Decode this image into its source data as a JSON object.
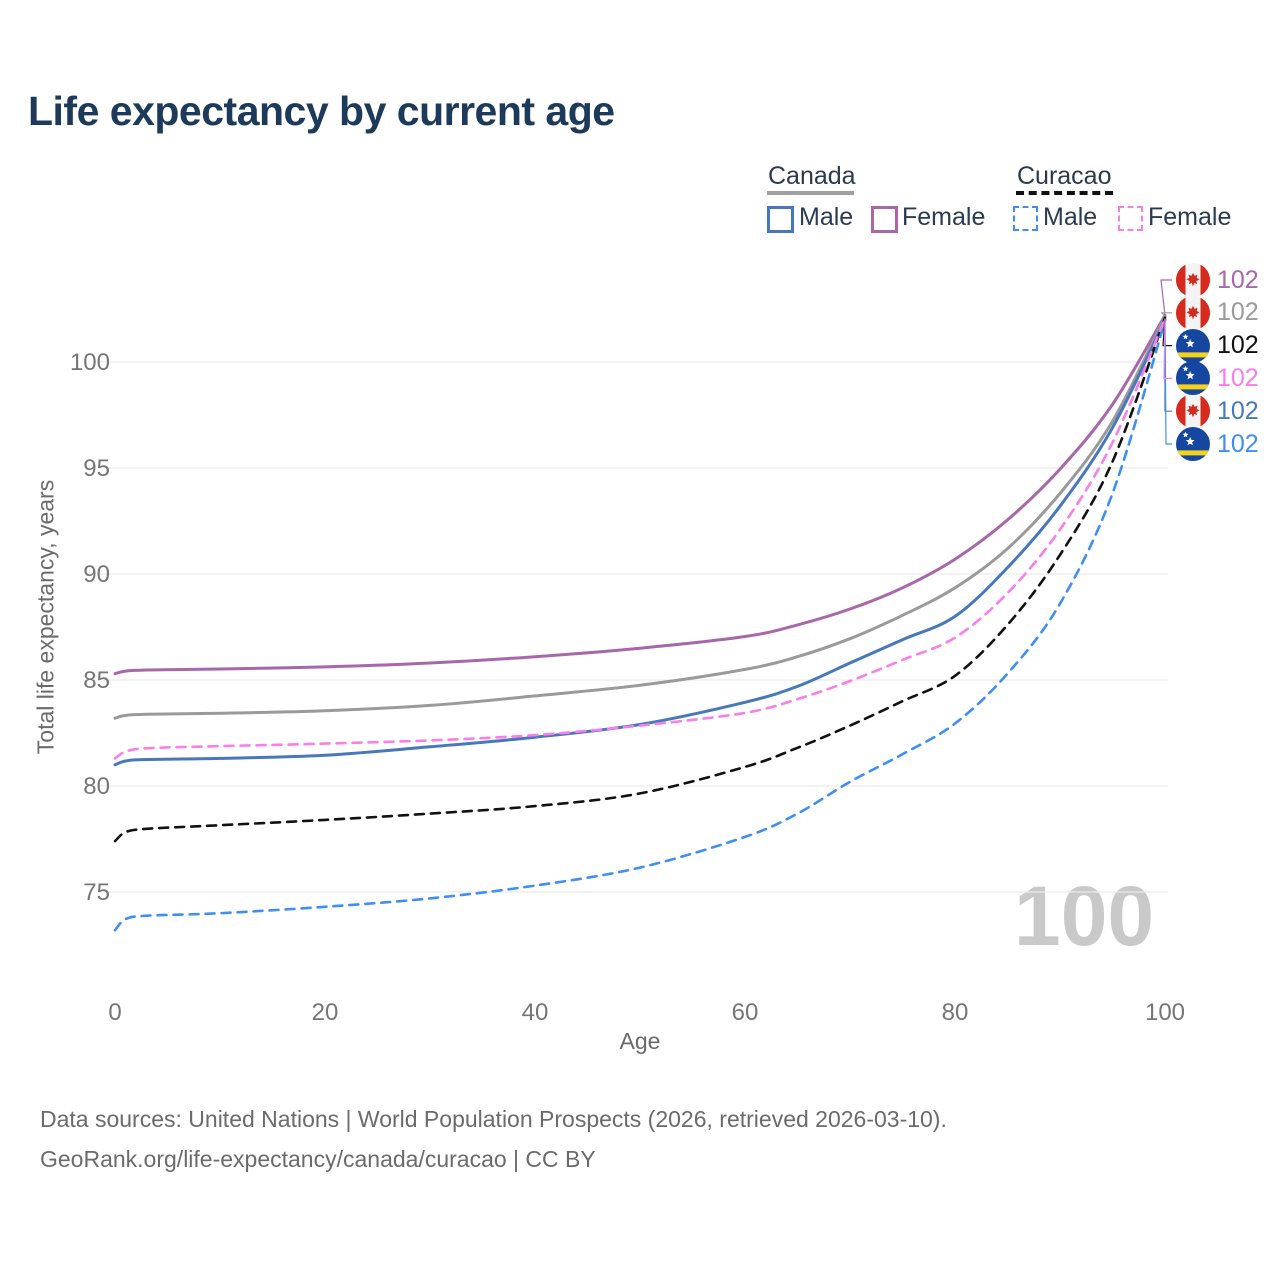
{
  "page": {
    "title": "Life expectancy by current age",
    "footer_line1": "Data sources: United Nations | World Population Prospects (2026, retrieved 2026-03-10).",
    "footer_line2": "GeoRank.org/life-expectancy/canada/curacao | CC BY",
    "watermark_age": "100"
  },
  "colors": {
    "canada_male": "#4678bb",
    "canada_female": "#a866ab",
    "canada_all": "#9a9a9a",
    "curacao_male": "#3f8ef5",
    "curacao_female": "#f97ee7",
    "curacao_all": "#111111",
    "grid": "#ebebeb",
    "tick_text": "#767676",
    "watermark": "#c9c9c9"
  },
  "legend": {
    "groups": [
      {
        "title": "Canada",
        "line_style": "solid",
        "underline_color": "#a0a0a0",
        "items": [
          {
            "label": "Male",
            "color": "#4678bb"
          },
          {
            "label": "Female",
            "color": "#a866ab"
          }
        ]
      },
      {
        "title": "Curacao",
        "line_style": "dashed",
        "underline_color": "#111111",
        "items": [
          {
            "label": "Male",
            "color": "#3f8ef5"
          },
          {
            "label": "Female",
            "color": "#f97ee7"
          }
        ]
      }
    ]
  },
  "chart_data": {
    "type": "line",
    "title": "Life expectancy by current age",
    "xlabel": "Age",
    "ylabel": "Total life expectancy, years",
    "x_ticks": [
      0,
      20,
      40,
      60,
      80,
      100
    ],
    "y_ticks": [
      75,
      80,
      85,
      90,
      95,
      100
    ],
    "xlim": [
      0,
      100
    ],
    "ylim": [
      73,
      103
    ],
    "grid": "horizontal-only",
    "legend_position": "top-right",
    "hover_age": "100",
    "ages": [
      0,
      1,
      3,
      10,
      20,
      30,
      40,
      50,
      60,
      65,
      70,
      75,
      80,
      85,
      90,
      95,
      100
    ],
    "series": [
      {
        "name": "Canada Female",
        "country": "Canada",
        "sex": "Female",
        "style": "solid",
        "color": "#a866ab",
        "width": 3,
        "end_label": "102",
        "label_row": 0,
        "values": [
          85.3,
          85.42,
          85.47,
          85.52,
          85.62,
          85.8,
          86.1,
          86.5,
          87.05,
          87.6,
          88.35,
          89.35,
          90.7,
          92.55,
          94.95,
          98.0,
          102.2
        ]
      },
      {
        "name": "Canada Both sexes",
        "country": "Canada",
        "sex": "Both",
        "style": "solid",
        "color": "#9a9a9a",
        "width": 3,
        "end_label": "102",
        "label_row": 1,
        "values": [
          83.2,
          83.33,
          83.38,
          83.43,
          83.55,
          83.8,
          84.25,
          84.75,
          85.5,
          86.1,
          86.95,
          88.05,
          89.35,
          91.2,
          93.8,
          97.2,
          102.15
        ]
      },
      {
        "name": "Canada Male",
        "country": "Canada",
        "sex": "Male",
        "style": "solid",
        "color": "#4678bb",
        "width": 3,
        "end_label": "102",
        "label_row": 4,
        "values": [
          81.0,
          81.18,
          81.25,
          81.3,
          81.45,
          81.85,
          82.3,
          82.9,
          83.95,
          84.7,
          85.8,
          86.9,
          88.0,
          90.3,
          93.2,
          96.9,
          102.0
        ]
      },
      {
        "name": "Curacao Both sexes",
        "country": "Curacao",
        "sex": "Both",
        "style": "dashed",
        "color": "#111111",
        "width": 2.6,
        "end_label": "102",
        "label_row": 2,
        "values": [
          77.4,
          77.82,
          77.98,
          78.15,
          78.4,
          78.7,
          79.05,
          79.65,
          80.9,
          81.8,
          82.85,
          84.0,
          85.2,
          87.6,
          90.9,
          95.3,
          102.1
        ]
      },
      {
        "name": "Curacao Male",
        "country": "Curacao",
        "sex": "Male",
        "style": "dashed",
        "color": "#3f8ef5",
        "width": 2.6,
        "end_label": "102",
        "label_row": 5,
        "values": [
          73.2,
          73.72,
          73.88,
          74.0,
          74.3,
          74.7,
          75.3,
          76.15,
          77.6,
          78.7,
          80.2,
          81.5,
          82.95,
          85.3,
          88.6,
          93.8,
          101.95
        ]
      },
      {
        "name": "Curacao Female",
        "country": "Curacao",
        "sex": "Female",
        "style": "dashed",
        "color": "#f97ee7",
        "width": 2.6,
        "end_label": "102",
        "label_row": 3,
        "values": [
          81.3,
          81.62,
          81.78,
          81.88,
          82.0,
          82.15,
          82.4,
          82.85,
          83.45,
          84.1,
          84.95,
          85.95,
          87.0,
          89.1,
          92.1,
          96.2,
          102.05
        ]
      }
    ]
  }
}
